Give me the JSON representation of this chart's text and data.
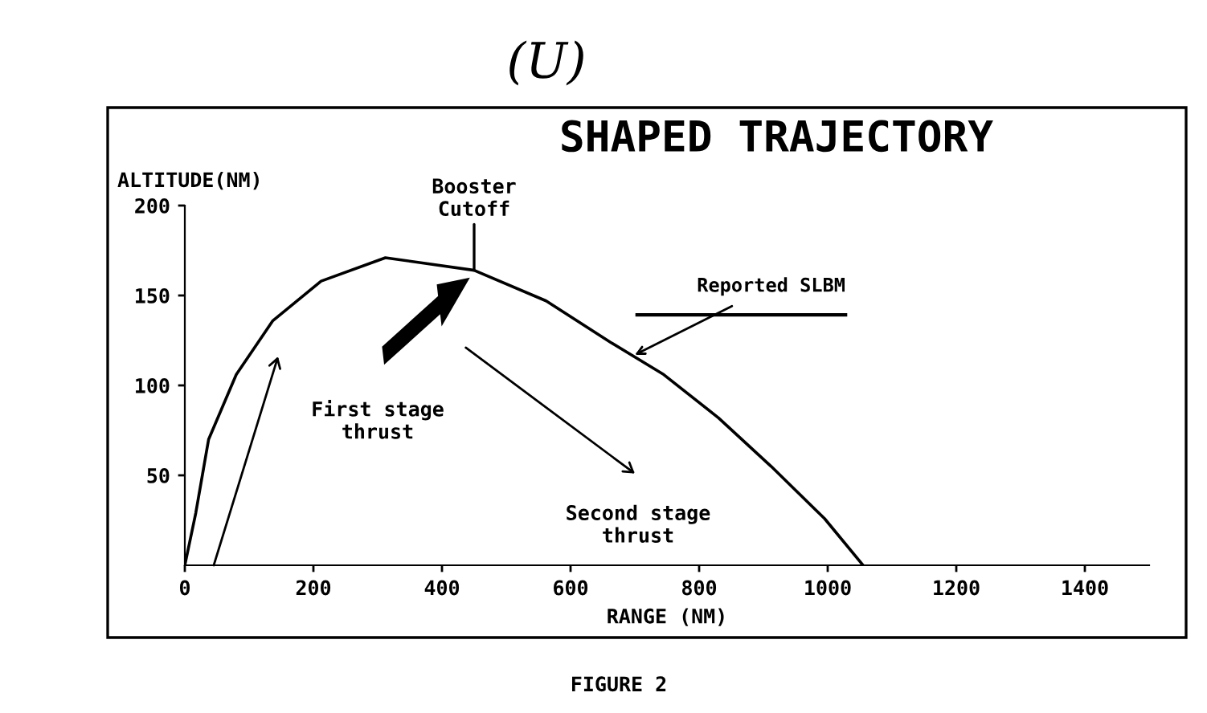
{
  "chart_data": {
    "type": "line",
    "title": "SHAPED TRAJECTORY",
    "xlabel": "RANGE (NM)",
    "ylabel": "ALTITUDE(NM)",
    "x": [
      0,
      17,
      37,
      80,
      137,
      212,
      312,
      450,
      562,
      662,
      745,
      830,
      912,
      995,
      1055
    ],
    "series": [
      {
        "color": "#000000",
        "values": [
          0,
          29,
          70,
          106,
          136,
          158,
          171,
          164,
          147,
          124,
          106,
          82,
          55,
          26,
          0
        ]
      }
    ],
    "xlim": [
      0,
      1500
    ],
    "ylim": [
      0,
      200
    ],
    "xticks": [
      0,
      200,
      400,
      600,
      800,
      1000,
      1200,
      1400
    ],
    "yticks": [
      50,
      100,
      150,
      200
    ],
    "annotations": [
      {
        "text": "Booster\nCutoff",
        "x": 450,
        "y": 164
      },
      "First stage\nthrust",
      "Second stage\nthrust",
      "(U)",
      "FIGURE 2",
      {
        "text": "Reported SLBM",
        "x": 700,
        "y": 117
      }
    ],
    "grid": false,
    "marker": "none",
    "line_style": "solid"
  }
}
